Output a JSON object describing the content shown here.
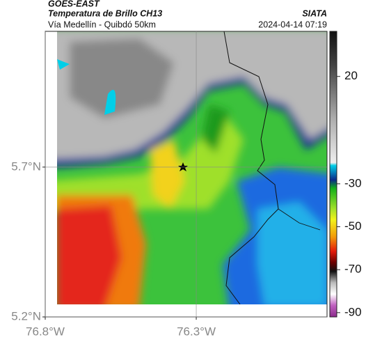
{
  "header": {
    "satellite": "GOES-EAST",
    "product": "Temperatura de Brillo CH13",
    "region": "Vía Medellín - Quibdó 50km",
    "source": "SIATA",
    "timestamp": "2024-04-14 07:19"
  },
  "map": {
    "xlim": [
      -76.8,
      -75.867
    ],
    "ylim": [
      5.2,
      6.153
    ],
    "xticks": [
      {
        "value": -76.8,
        "label": "76.8°W"
      },
      {
        "value": -76.3,
        "label": "76.3°W"
      }
    ],
    "yticks": [
      {
        "value": 5.7,
        "label": "5.7°N"
      },
      {
        "value": 5.2,
        "label": "5.2°N"
      }
    ],
    "grid": true
  },
  "colorbar": {
    "clim": [
      -92,
      41
    ],
    "ticks": [
      20,
      -30,
      -50,
      -70,
      -90
    ]
  }
}
